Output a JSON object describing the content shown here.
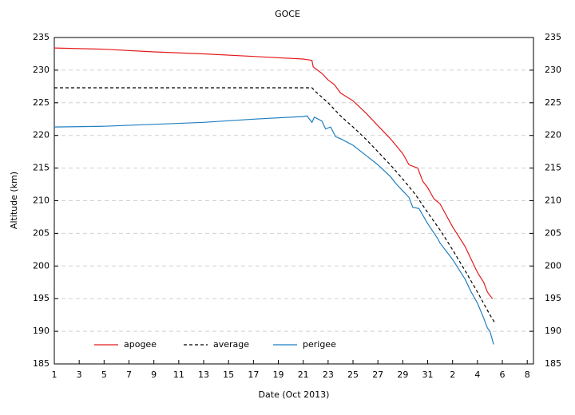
{
  "chart_data": {
    "type": "line",
    "title": "GOCE",
    "xlabel": "Date (Oct 2013)",
    "ylabel": "Altitude (km)",
    "xlim": [
      1,
      39.5
    ],
    "xticks": [
      1,
      3,
      5,
      7,
      9,
      11,
      13,
      15,
      17,
      19,
      21,
      23,
      25,
      27,
      29,
      31,
      {
        "value": 33,
        "label": "2"
      },
      {
        "value": 35,
        "label": "4"
      },
      {
        "value": 37,
        "label": "6"
      },
      {
        "value": 39,
        "label": "8"
      }
    ],
    "ylim": [
      185,
      235
    ],
    "yticks": [
      185,
      190,
      195,
      200,
      205,
      210,
      215,
      220,
      225,
      230,
      235
    ],
    "y2lim": [
      185,
      235
    ],
    "y2ticks": [
      185,
      190,
      195,
      200,
      205,
      210,
      215,
      220,
      225,
      230,
      235
    ],
    "grid": true,
    "legend": "bottom-left",
    "series": [
      {
        "name": "apogee",
        "color": "#e41a1c",
        "dashed": false,
        "x": [
          1,
          5,
          9,
          13,
          17,
          21,
          21.7,
          21.8,
          22.5,
          23,
          23.5,
          24,
          25,
          26,
          27,
          28,
          29,
          29.5,
          30.2,
          30.6,
          31,
          31.5,
          32,
          33,
          34,
          34.5,
          35,
          35.5,
          35.8,
          36.2
        ],
        "values": [
          233.4,
          233.2,
          232.8,
          232.5,
          232.1,
          231.7,
          231.5,
          230.5,
          229.5,
          228.5,
          227.8,
          226.5,
          225.3,
          223.5,
          221.5,
          219.5,
          217.2,
          215.5,
          215,
          213,
          212,
          210.3,
          209.5,
          206,
          203,
          201,
          199,
          197.5,
          196,
          195
        ]
      },
      {
        "name": "average",
        "color": "#000000",
        "dashed": true,
        "x": [
          1,
          21.7,
          22,
          23,
          24,
          25,
          26,
          27,
          28,
          29,
          30,
          31,
          32,
          33,
          34,
          35,
          36,
          36.4
        ],
        "values": [
          227.3,
          227.3,
          226.7,
          225,
          223,
          221.3,
          219.5,
          217.5,
          215.5,
          213.3,
          211,
          208.2,
          205.5,
          202.5,
          199.3,
          196,
          192.5,
          191.3
        ]
      },
      {
        "name": "perigee",
        "color": "#1f7fc0",
        "dashed": false,
        "x": [
          1,
          5,
          9,
          13,
          17,
          21,
          21.3,
          21.7,
          21.9,
          22.5,
          22.8,
          23.2,
          23.6,
          24,
          25,
          26,
          27,
          28,
          28.5,
          29,
          29.5,
          29.8,
          30.3,
          31,
          31.8,
          32,
          33,
          34,
          34.5,
          35,
          35.5,
          35.8,
          36,
          36.3
        ],
        "values": [
          221.3,
          221.4,
          221.7,
          222,
          222.5,
          222.9,
          223,
          222,
          222.8,
          222.2,
          221,
          221.3,
          219.8,
          219.5,
          218.5,
          217,
          215.5,
          213.7,
          212.5,
          211.5,
          210.5,
          209,
          208.8,
          206.5,
          204.2,
          203.5,
          201,
          198,
          196,
          194.3,
          192,
          190.5,
          190,
          188
        ]
      }
    ]
  }
}
